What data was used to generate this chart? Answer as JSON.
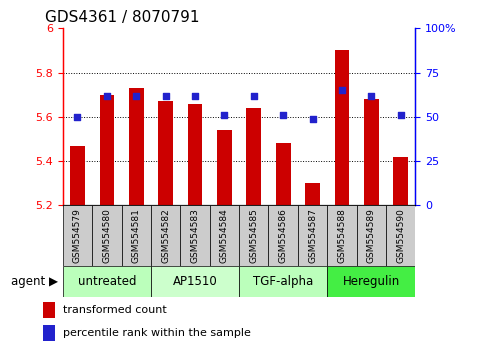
{
  "title": "GDS4361 / 8070791",
  "samples": [
    "GSM554579",
    "GSM554580",
    "GSM554581",
    "GSM554582",
    "GSM554583",
    "GSM554584",
    "GSM554585",
    "GSM554586",
    "GSM554587",
    "GSM554588",
    "GSM554589",
    "GSM554590"
  ],
  "bar_values": [
    5.47,
    5.7,
    5.73,
    5.67,
    5.66,
    5.54,
    5.64,
    5.48,
    5.3,
    5.9,
    5.68,
    5.42
  ],
  "percentile_values": [
    50,
    62,
    62,
    62,
    62,
    51,
    62,
    51,
    49,
    65,
    62,
    51
  ],
  "bar_color": "#cc0000",
  "dot_color": "#2222cc",
  "ylim_left": [
    5.2,
    6.0
  ],
  "ylim_right": [
    0,
    100
  ],
  "yticks_left": [
    5.2,
    5.4,
    5.6,
    5.8,
    6.0
  ],
  "ytick_labels_left": [
    "5.2",
    "5.4",
    "5.6",
    "5.8",
    "6"
  ],
  "yticks_right": [
    0,
    25,
    50,
    75,
    100
  ],
  "ytick_labels_right": [
    "0",
    "25",
    "50",
    "75",
    "100%"
  ],
  "grid_lines": [
    5.4,
    5.6,
    5.8
  ],
  "agents": [
    {
      "label": "untreated",
      "start": 0,
      "end": 3,
      "color": "#bbffbb"
    },
    {
      "label": "AP1510",
      "start": 3,
      "end": 6,
      "color": "#ccffcc"
    },
    {
      "label": "TGF-alpha",
      "start": 6,
      "end": 9,
      "color": "#bbffbb"
    },
    {
      "label": "Heregulin",
      "start": 9,
      "end": 12,
      "color": "#44ee44"
    }
  ],
  "agent_label": "agent",
  "legend_bar_label": "transformed count",
  "legend_dot_label": "percentile rank within the sample",
  "bar_width": 0.5,
  "bg_color": "#cccccc",
  "title_fontsize": 11,
  "tick_fontsize": 8,
  "sample_fontsize": 6.5,
  "agent_fontsize": 8.5,
  "legend_fontsize": 8
}
